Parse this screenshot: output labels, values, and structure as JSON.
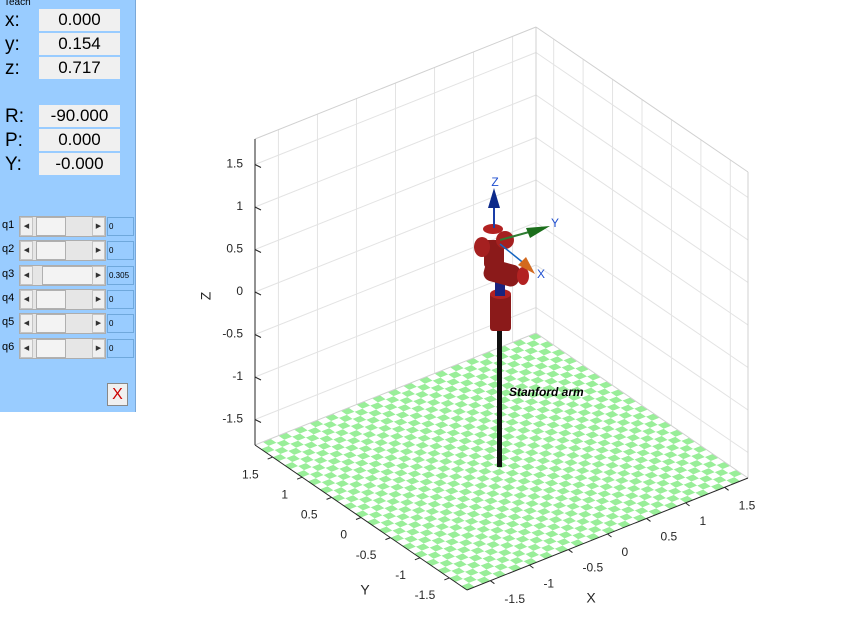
{
  "panel": {
    "title": "Teach",
    "pose": [
      {
        "label": "x:",
        "value": "0.000"
      },
      {
        "label": "y:",
        "value": "0.154"
      },
      {
        "label": "z:",
        "value": "0.717"
      },
      {
        "label": "R:",
        "value": "-90.000"
      },
      {
        "label": "P:",
        "value": "0.000"
      },
      {
        "label": "Y:",
        "value": "-0.000"
      }
    ],
    "joints": [
      {
        "label": "q1",
        "value": "0"
      },
      {
        "label": "q2",
        "value": "0"
      },
      {
        "label": "q3",
        "value": "0.305"
      },
      {
        "label": "q4",
        "value": "0"
      },
      {
        "label": "q5",
        "value": "0"
      },
      {
        "label": "q6",
        "value": "0"
      }
    ],
    "close": "X"
  },
  "plot": {
    "type": "3d",
    "xlabel": "X",
    "ylabel": "Y",
    "zlabel": "Z",
    "xlim": [
      -1.8,
      1.8
    ],
    "ylim": [
      -1.8,
      1.8
    ],
    "zlim": [
      -1.8,
      1.8
    ],
    "xticks": [
      -1.5,
      -1,
      -0.5,
      0,
      0.5,
      1,
      1.5
    ],
    "yticks": [
      -1.5,
      -1,
      -0.5,
      0,
      0.5,
      1,
      1.5
    ],
    "zticks": [
      -1.5,
      -1,
      -0.5,
      0,
      0.5,
      1,
      1.5
    ],
    "grid": true,
    "robot_name": "Stanford arm",
    "frame_labels": {
      "x": "X",
      "y": "Y",
      "z": "Z"
    }
  }
}
